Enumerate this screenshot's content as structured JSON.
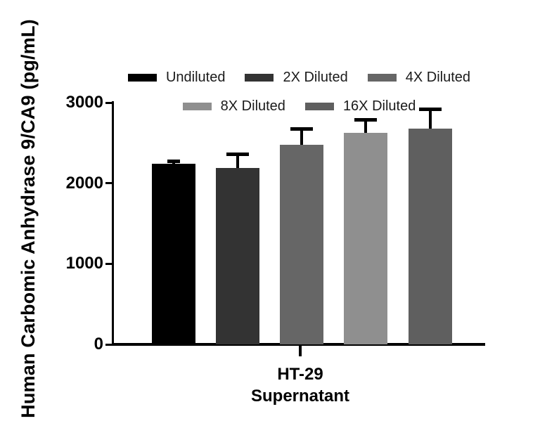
{
  "chart_data": {
    "type": "bar",
    "title": "",
    "ylabel": "Human Carbomic Anhydrase 9/CA9 (pg/mL)",
    "xlabel_lines": [
      "HT-29",
      "Supernatant"
    ],
    "categories": [
      "HT-29 Supernatant"
    ],
    "ylim": [
      0,
      3000
    ],
    "yticks": [
      0,
      1000,
      2000,
      3000
    ],
    "grid": false,
    "legend_position": "top-center",
    "axis_color": "#000000",
    "background_color": "#ffffff",
    "series": [
      {
        "name": "Undiluted",
        "color": "#000000",
        "value": 2240,
        "error_plus": 35
      },
      {
        "name": "2X Diluted",
        "color": "#333333",
        "value": 2185,
        "error_plus": 170
      },
      {
        "name": "4X Diluted",
        "color": "#666666",
        "value": 2475,
        "error_plus": 200
      },
      {
        "name": "8X Diluted",
        "color": "#8F8F8F",
        "value": 2625,
        "error_plus": 165
      },
      {
        "name": "16X Diluted",
        "color": "#5F5F5F",
        "value": 2675,
        "error_plus": 245
      }
    ],
    "legend_rows": [
      [
        "Undiluted",
        "2X Diluted",
        "4X Diluted"
      ],
      [
        "8X Diluted",
        "16X Diluted"
      ]
    ]
  }
}
